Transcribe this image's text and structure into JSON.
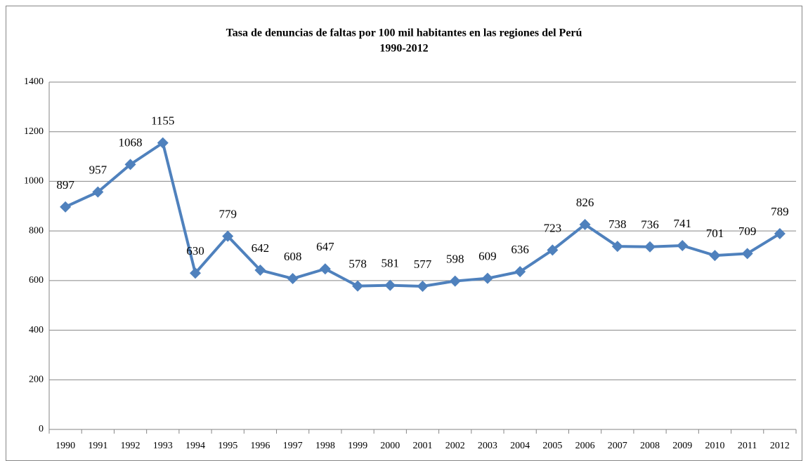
{
  "chart_data": {
    "type": "line",
    "title": "Tasa de denuncias de faltas por 100 mil habitantes en las regiones del Perú",
    "subtitle": "1990-2012",
    "categories": [
      "1990",
      "1991",
      "1992",
      "1993",
      "1994",
      "1995",
      "1996",
      "1997",
      "1998",
      "1999",
      "2000",
      "2001",
      "2002",
      "2003",
      "2004",
      "2005",
      "2006",
      "2007",
      "2008",
      "2009",
      "2010",
      "2011",
      "2012"
    ],
    "values": [
      897,
      957,
      1068,
      1155,
      630,
      779,
      642,
      608,
      647,
      578,
      581,
      577,
      598,
      609,
      636,
      723,
      826,
      738,
      736,
      741,
      701,
      709,
      789
    ],
    "color": "#4f81bd",
    "ylim": [
      0,
      1400
    ],
    "yticks": [
      0,
      200,
      400,
      600,
      800,
      1000,
      1200,
      1400
    ],
    "grid": true
  }
}
